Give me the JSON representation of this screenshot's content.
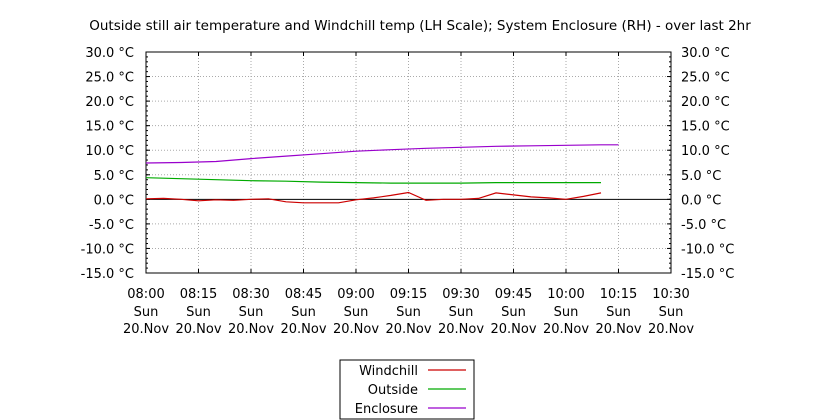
{
  "chart_data": {
    "type": "line",
    "title": "Outside still air temperature and Windchill temp (LH Scale); System Enclosure (RH) - over last 2hr",
    "y_unit": "°C",
    "ylim": [
      -15,
      30
    ],
    "yticks": [
      -15,
      -10,
      -5,
      0,
      5,
      10,
      15,
      20,
      25,
      30
    ],
    "ytick_labels": [
      "-15.0 °C",
      "-10.0 °C",
      "-5.0 °C",
      "0.0 °C",
      "5.0 °C",
      "10.0 °C",
      "15.0 °C",
      "20.0 °C",
      "25.0 °C",
      "30.0 °C"
    ],
    "x_range": [
      "08:00",
      "10:30"
    ],
    "xticks": [
      {
        "time": "08:00",
        "day": "Sun",
        "date": "20.Nov"
      },
      {
        "time": "08:15",
        "day": "Sun",
        "date": "20.Nov"
      },
      {
        "time": "08:30",
        "day": "Sun",
        "date": "20.Nov"
      },
      {
        "time": "08:45",
        "day": "Sun",
        "date": "20.Nov"
      },
      {
        "time": "09:00",
        "day": "Sun",
        "date": "20.Nov"
      },
      {
        "time": "09:15",
        "day": "Sun",
        "date": "20.Nov"
      },
      {
        "time": "09:30",
        "day": "Sun",
        "date": "20.Nov"
      },
      {
        "time": "09:45",
        "day": "Sun",
        "date": "20.Nov"
      },
      {
        "time": "10:00",
        "day": "Sun",
        "date": "20.Nov"
      },
      {
        "time": "10:15",
        "day": "Sun",
        "date": "20.Nov"
      },
      {
        "time": "10:30",
        "day": "Sun",
        "date": "20.Nov"
      }
    ],
    "grid": true,
    "legend_position": "bottom-center",
    "series": [
      {
        "name": "Windchill",
        "color": "#cc0000",
        "points": [
          [
            "08:00",
            0.1
          ],
          [
            "08:05",
            0.2
          ],
          [
            "08:10",
            0.0
          ],
          [
            "08:15",
            -0.3
          ],
          [
            "08:20",
            -0.1
          ],
          [
            "08:25",
            -0.2
          ],
          [
            "08:30",
            0.0
          ],
          [
            "08:35",
            0.1
          ],
          [
            "08:40",
            -0.5
          ],
          [
            "08:45",
            -0.7
          ],
          [
            "08:50",
            -0.7
          ],
          [
            "08:55",
            -0.7
          ],
          [
            "09:00",
            -0.1
          ],
          [
            "09:05",
            0.3
          ],
          [
            "09:10",
            0.8
          ],
          [
            "09:15",
            1.4
          ],
          [
            "09:20",
            -0.2
          ],
          [
            "09:25",
            0.0
          ],
          [
            "09:30",
            0.0
          ],
          [
            "09:35",
            0.2
          ],
          [
            "09:40",
            1.3
          ],
          [
            "09:45",
            0.9
          ],
          [
            "09:50",
            0.5
          ],
          [
            "09:55",
            0.3
          ],
          [
            "10:00",
            0.0
          ],
          [
            "10:05",
            0.6
          ],
          [
            "10:10",
            1.3
          ]
        ]
      },
      {
        "name": "Outside",
        "color": "#00aa00",
        "points": [
          [
            "08:00",
            4.4
          ],
          [
            "08:10",
            4.2
          ],
          [
            "08:20",
            4.0
          ],
          [
            "08:30",
            3.8
          ],
          [
            "08:40",
            3.7
          ],
          [
            "08:50",
            3.5
          ],
          [
            "09:00",
            3.4
          ],
          [
            "09:10",
            3.3
          ],
          [
            "09:20",
            3.3
          ],
          [
            "09:30",
            3.3
          ],
          [
            "09:40",
            3.4
          ],
          [
            "09:50",
            3.4
          ],
          [
            "10:00",
            3.4
          ],
          [
            "10:10",
            3.4
          ]
        ]
      },
      {
        "name": "Enclosure",
        "color": "#9900cc",
        "points": [
          [
            "08:00",
            7.4
          ],
          [
            "08:10",
            7.5
          ],
          [
            "08:20",
            7.7
          ],
          [
            "08:30",
            8.3
          ],
          [
            "08:40",
            8.8
          ],
          [
            "08:50",
            9.3
          ],
          [
            "09:00",
            9.8
          ],
          [
            "09:10",
            10.1
          ],
          [
            "09:20",
            10.4
          ],
          [
            "09:30",
            10.6
          ],
          [
            "09:40",
            10.8
          ],
          [
            "09:50",
            10.9
          ],
          [
            "10:00",
            11.0
          ],
          [
            "10:10",
            11.1
          ],
          [
            "10:15",
            11.1
          ]
        ]
      }
    ]
  }
}
